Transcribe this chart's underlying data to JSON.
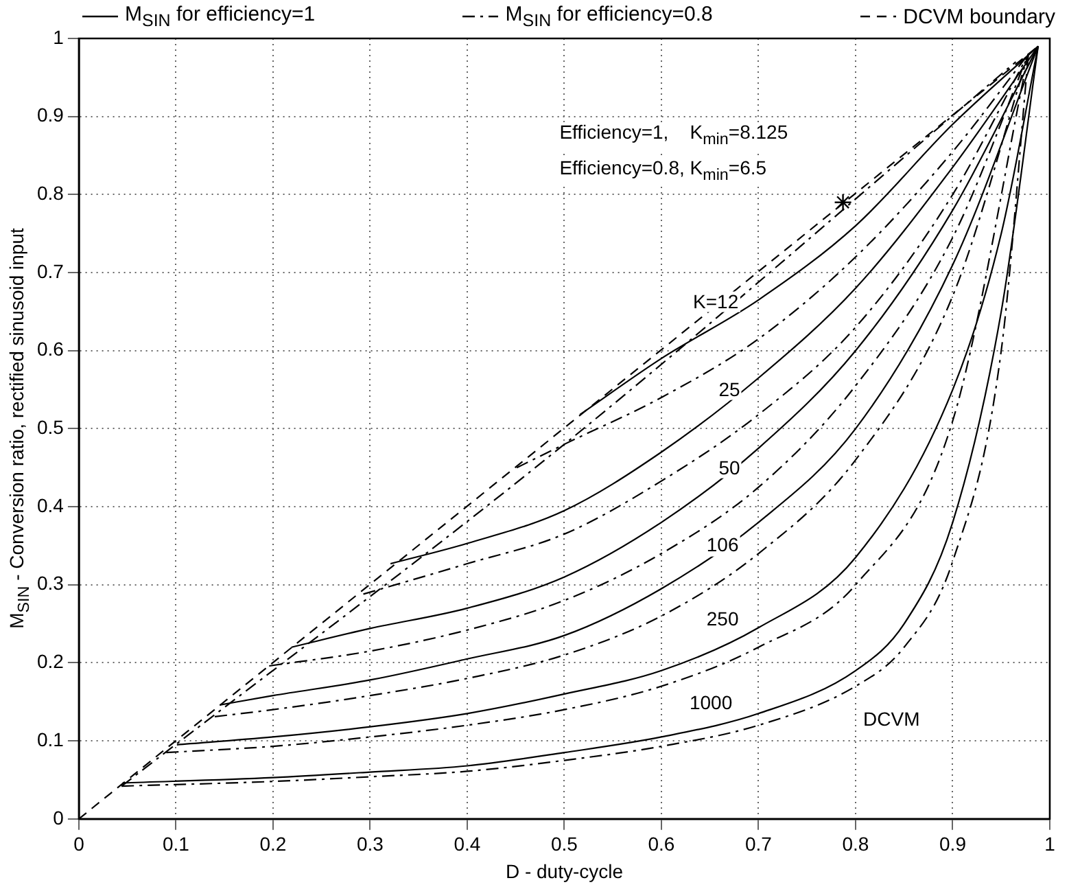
{
  "chart_data": {
    "type": "line",
    "xlabel": "D - duty-cycle",
    "ylabel": "M$_{SIN}$ - Conversion ratio, rectified sinusoid input",
    "xlim": [
      0,
      1
    ],
    "ylim": [
      0,
      1
    ],
    "xticks": [
      0,
      0.1,
      0.2,
      0.3,
      0.4,
      0.5,
      0.6,
      0.7,
      0.8,
      0.9,
      1
    ],
    "yticks": [
      0,
      0.1,
      0.2,
      0.3,
      0.4,
      0.5,
      0.6,
      0.7,
      0.8,
      0.9,
      1
    ],
    "grid": true,
    "legend": "top",
    "series": [
      {
        "name": "M$_{SIN}$ for efficiency=1",
        "color": "#000000",
        "line_style": "solid",
        "x": [
          0.516,
          0.6,
          0.7,
          0.8,
          0.9,
          0.988
        ],
        "values": [
          0.518,
          0.59,
          0.665,
          0.76,
          0.89,
          0.99
        ]
      },
      {
        "color": "#000000",
        "line_style": "solid",
        "x": [
          0.321,
          0.4,
          0.5,
          0.6,
          0.7,
          0.8,
          0.9,
          0.988
        ],
        "values": [
          0.327,
          0.353,
          0.395,
          0.47,
          0.565,
          0.68,
          0.835,
          0.99
        ]
      },
      {
        "color": "#000000",
        "line_style": "solid",
        "x": [
          0.219,
          0.3,
          0.4,
          0.5,
          0.6,
          0.7,
          0.8,
          0.9,
          0.988
        ],
        "values": [
          0.22,
          0.244,
          0.27,
          0.31,
          0.38,
          0.475,
          0.6,
          0.78,
          0.99
        ]
      },
      {
        "color": "#000000",
        "line_style": "solid",
        "x": [
          0.145,
          0.2,
          0.3,
          0.4,
          0.5,
          0.6,
          0.7,
          0.8,
          0.9,
          0.988
        ],
        "values": [
          0.146,
          0.158,
          0.178,
          0.205,
          0.235,
          0.295,
          0.38,
          0.5,
          0.71,
          0.99
        ]
      },
      {
        "color": "#000000",
        "line_style": "solid",
        "x": [
          0.101,
          0.2,
          0.3,
          0.4,
          0.5,
          0.6,
          0.7,
          0.8,
          0.9,
          0.95,
          0.988
        ],
        "values": [
          0.095,
          0.105,
          0.118,
          0.135,
          0.16,
          0.19,
          0.245,
          0.335,
          0.55,
          0.75,
          0.99
        ]
      },
      {
        "color": "#000000",
        "line_style": "solid",
        "x": [
          0.045,
          0.2,
          0.3,
          0.4,
          0.5,
          0.6,
          0.7,
          0.8,
          0.85,
          0.9,
          0.95,
          0.988
        ],
        "values": [
          0.046,
          0.053,
          0.06,
          0.068,
          0.085,
          0.105,
          0.135,
          0.19,
          0.25,
          0.38,
          0.65,
          0.99
        ]
      },
      {
        "name": "M$_{SIN}$ for efficiency=0.8",
        "color": "#000000",
        "line_style": "dashdot",
        "x": [
          0.451,
          0.5,
          0.6,
          0.7,
          0.8,
          0.9,
          0.978
        ],
        "values": [
          0.45,
          0.48,
          0.54,
          0.615,
          0.72,
          0.855,
          0.98
        ]
      },
      {
        "color": "#000000",
        "line_style": "dashdot",
        "x": [
          0.293,
          0.4,
          0.5,
          0.6,
          0.7,
          0.8,
          0.9,
          0.978
        ],
        "values": [
          0.288,
          0.327,
          0.365,
          0.433,
          0.518,
          0.63,
          0.8,
          0.98
        ]
      },
      {
        "color": "#000000",
        "line_style": "dashdot",
        "x": [
          0.196,
          0.3,
          0.4,
          0.5,
          0.6,
          0.7,
          0.8,
          0.9,
          0.978
        ],
        "values": [
          0.196,
          0.215,
          0.242,
          0.28,
          0.34,
          0.425,
          0.555,
          0.745,
          0.98
        ]
      },
      {
        "color": "#000000",
        "line_style": "dashdot",
        "x": [
          0.14,
          0.2,
          0.3,
          0.4,
          0.5,
          0.6,
          0.7,
          0.8,
          0.9,
          0.978
        ],
        "values": [
          0.131,
          0.14,
          0.158,
          0.18,
          0.21,
          0.26,
          0.34,
          0.46,
          0.67,
          0.98
        ]
      },
      {
        "color": "#000000",
        "line_style": "dashdot",
        "x": [
          0.09,
          0.2,
          0.3,
          0.4,
          0.5,
          0.6,
          0.7,
          0.8,
          0.9,
          0.978
        ],
        "values": [
          0.085,
          0.093,
          0.105,
          0.12,
          0.14,
          0.17,
          0.22,
          0.3,
          0.51,
          0.98
        ]
      },
      {
        "color": "#000000",
        "line_style": "dashdot",
        "x": [
          0.044,
          0.2,
          0.3,
          0.4,
          0.5,
          0.6,
          0.7,
          0.8,
          0.85,
          0.9,
          0.95,
          0.978
        ],
        "values": [
          0.042,
          0.048,
          0.054,
          0.061,
          0.075,
          0.093,
          0.12,
          0.17,
          0.22,
          0.33,
          0.6,
          0.98
        ]
      },
      {
        "color": "#000000",
        "line_style": "dashdot",
        "x": [
          0.044,
          0.5,
          0.965
        ],
        "values": [
          0.042,
          0.48,
          0.97
        ]
      },
      {
        "name": "DCVM boundary",
        "color": "#000000",
        "line_style": "dashed",
        "x": [
          0,
          0.988
        ],
        "values": [
          0,
          0.99
        ]
      },
      {
        "type": "scatter",
        "marker": "cross",
        "color": "#000000",
        "x": [
          0.787
        ],
        "values": [
          0.79
        ]
      }
    ],
    "annotations": [
      "Efficiency=1,    K$_{min}$=8.125",
      "Efficiency=0.8, K$_{min}$=6.5",
      "K=12",
      "25",
      "50",
      "106",
      "250",
      "1000",
      "DCVM"
    ]
  }
}
